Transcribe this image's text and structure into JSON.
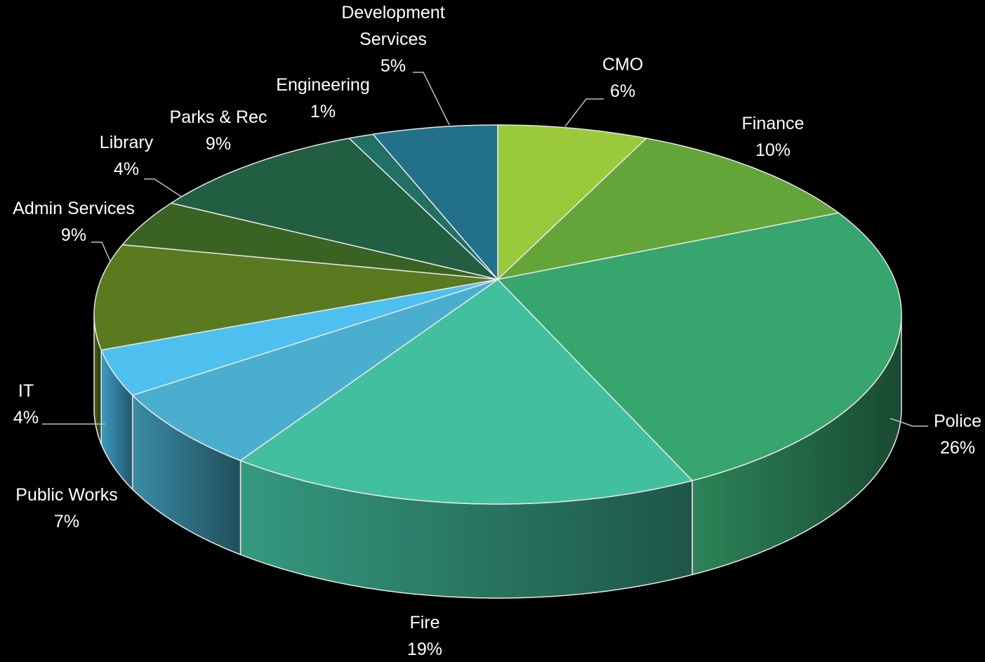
{
  "chart_data": {
    "type": "pie",
    "categories": [
      "CMO",
      "Finance",
      "Police",
      "Fire",
      "Public Works",
      "IT",
      "Admin Services",
      "Library",
      "Parks & Rec",
      "Engineering",
      "Development Services"
    ],
    "values": [
      6,
      10,
      26,
      19,
      7,
      4,
      9,
      4,
      9,
      1,
      5
    ],
    "value_labels": [
      "6%",
      "10%",
      "26%",
      "19%",
      "7%",
      "4%",
      "9%",
      "4%",
      "9%",
      "1%",
      "5%"
    ],
    "colors": [
      "#9ac93c",
      "#63a539",
      "#37a56e",
      "#42bf9f",
      "#4aafce",
      "#4dc0f0",
      "#5a7a20",
      "#3a6222",
      "#225f42",
      "#217063",
      "#23708a"
    ]
  }
}
